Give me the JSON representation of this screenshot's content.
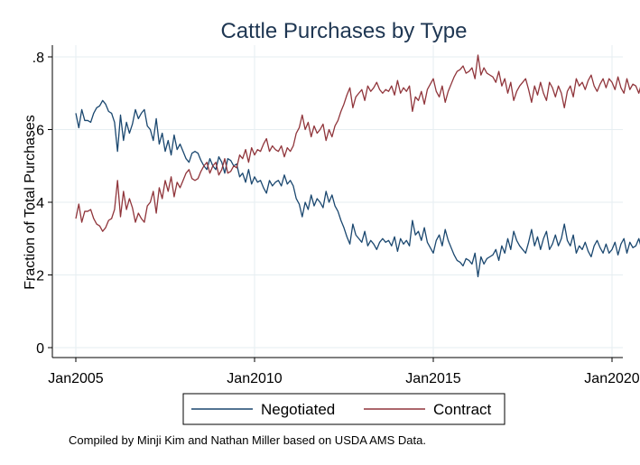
{
  "chart_data": {
    "type": "line",
    "title": "Cattle Purchases by Type",
    "ylabel": "Fraction of Total Purchases",
    "xlabel": "",
    "x_start": "2005-01",
    "x_end": "2019-12",
    "xlim": [
      "2005-01",
      "2020-01"
    ],
    "ylim": [
      0,
      0.8
    ],
    "x_ticks": [
      {
        "date": "2005-01",
        "label": "Jan2005"
      },
      {
        "date": "2010-01",
        "label": "Jan2010"
      },
      {
        "date": "2015-01",
        "label": "Jan2015"
      },
      {
        "date": "2020-01",
        "label": "Jan2020"
      }
    ],
    "y_ticks": [
      {
        "value": 0,
        "label": "0"
      },
      {
        "value": 0.2,
        "label": ".2"
      },
      {
        "value": 0.4,
        "label": ".4"
      },
      {
        "value": 0.6,
        "label": ".6"
      },
      {
        "value": 0.8,
        "label": ".8"
      }
    ],
    "grid": true,
    "legend_position": "bottom",
    "series": [
      {
        "name": "Negotiated",
        "color": "#1a476f",
        "values": [
          0.645,
          0.605,
          0.655,
          0.625,
          0.625,
          0.62,
          0.645,
          0.66,
          0.665,
          0.68,
          0.67,
          0.65,
          0.645,
          0.62,
          0.54,
          0.64,
          0.57,
          0.62,
          0.59,
          0.615,
          0.655,
          0.63,
          0.645,
          0.655,
          0.61,
          0.6,
          0.57,
          0.63,
          0.56,
          0.59,
          0.54,
          0.57,
          0.53,
          0.585,
          0.545,
          0.56,
          0.54,
          0.52,
          0.51,
          0.535,
          0.54,
          0.535,
          0.515,
          0.5,
          0.49,
          0.52,
          0.5,
          0.49,
          0.525,
          0.51,
          0.48,
          0.52,
          0.515,
          0.5,
          0.505,
          0.47,
          0.48,
          0.455,
          0.49,
          0.45,
          0.47,
          0.455,
          0.46,
          0.44,
          0.425,
          0.46,
          0.445,
          0.455,
          0.46,
          0.445,
          0.475,
          0.45,
          0.46,
          0.445,
          0.41,
          0.395,
          0.36,
          0.4,
          0.38,
          0.42,
          0.39,
          0.41,
          0.4,
          0.385,
          0.43,
          0.4,
          0.42,
          0.39,
          0.375,
          0.35,
          0.33,
          0.305,
          0.285,
          0.34,
          0.31,
          0.3,
          0.29,
          0.32,
          0.28,
          0.295,
          0.285,
          0.27,
          0.29,
          0.3,
          0.29,
          0.295,
          0.28,
          0.305,
          0.265,
          0.3,
          0.285,
          0.295,
          0.28,
          0.35,
          0.31,
          0.32,
          0.295,
          0.33,
          0.29,
          0.275,
          0.26,
          0.295,
          0.31,
          0.28,
          0.325,
          0.295,
          0.275,
          0.255,
          0.24,
          0.235,
          0.225,
          0.245,
          0.24,
          0.23,
          0.26,
          0.195,
          0.25,
          0.23,
          0.245,
          0.25,
          0.255,
          0.27,
          0.24,
          0.28,
          0.26,
          0.3,
          0.27,
          0.32,
          0.295,
          0.28,
          0.27,
          0.26,
          0.29,
          0.325,
          0.28,
          0.305,
          0.27,
          0.3,
          0.32,
          0.27,
          0.285,
          0.31,
          0.28,
          0.3,
          0.34,
          0.295,
          0.28,
          0.31,
          0.26,
          0.28,
          0.27,
          0.29,
          0.265,
          0.25,
          0.28,
          0.295,
          0.275,
          0.26,
          0.285,
          0.26,
          0.27,
          0.29,
          0.255,
          0.285,
          0.3,
          0.26,
          0.29,
          0.275,
          0.28,
          0.3,
          0.27,
          0.29,
          0.25,
          0.28,
          0.23,
          0.26,
          0.25,
          0.23,
          0.275,
          0.25,
          0.24,
          0.22,
          0.21,
          0.2,
          0.23,
          0.235
        ]
      },
      {
        "name": "Contract",
        "color": "#90353b",
        "values": [
          0.355,
          0.395,
          0.345,
          0.375,
          0.375,
          0.38,
          0.355,
          0.34,
          0.335,
          0.32,
          0.33,
          0.35,
          0.355,
          0.38,
          0.46,
          0.36,
          0.43,
          0.38,
          0.41,
          0.385,
          0.345,
          0.37,
          0.355,
          0.345,
          0.39,
          0.4,
          0.43,
          0.37,
          0.44,
          0.41,
          0.46,
          0.43,
          0.47,
          0.415,
          0.455,
          0.44,
          0.46,
          0.48,
          0.49,
          0.465,
          0.46,
          0.465,
          0.485,
          0.5,
          0.51,
          0.48,
          0.5,
          0.51,
          0.475,
          0.49,
          0.52,
          0.48,
          0.485,
          0.5,
          0.495,
          0.53,
          0.52,
          0.545,
          0.51,
          0.55,
          0.53,
          0.545,
          0.54,
          0.56,
          0.575,
          0.54,
          0.555,
          0.545,
          0.54,
          0.555,
          0.525,
          0.55,
          0.54,
          0.555,
          0.59,
          0.605,
          0.64,
          0.6,
          0.62,
          0.58,
          0.61,
          0.59,
          0.6,
          0.615,
          0.57,
          0.6,
          0.58,
          0.61,
          0.625,
          0.65,
          0.67,
          0.695,
          0.715,
          0.66,
          0.69,
          0.7,
          0.71,
          0.68,
          0.72,
          0.705,
          0.715,
          0.73,
          0.71,
          0.7,
          0.71,
          0.705,
          0.72,
          0.695,
          0.735,
          0.7,
          0.715,
          0.705,
          0.72,
          0.65,
          0.69,
          0.68,
          0.705,
          0.67,
          0.71,
          0.725,
          0.74,
          0.705,
          0.69,
          0.72,
          0.675,
          0.705,
          0.725,
          0.745,
          0.76,
          0.765,
          0.775,
          0.755,
          0.76,
          0.77,
          0.74,
          0.805,
          0.75,
          0.77,
          0.755,
          0.75,
          0.745,
          0.73,
          0.76,
          0.72,
          0.74,
          0.7,
          0.73,
          0.68,
          0.705,
          0.72,
          0.73,
          0.74,
          0.71,
          0.675,
          0.72,
          0.695,
          0.73,
          0.7,
          0.68,
          0.73,
          0.715,
          0.69,
          0.72,
          0.7,
          0.66,
          0.705,
          0.72,
          0.69,
          0.74,
          0.72,
          0.73,
          0.71,
          0.735,
          0.75,
          0.72,
          0.705,
          0.725,
          0.74,
          0.715,
          0.74,
          0.73,
          0.71,
          0.745,
          0.715,
          0.7,
          0.74,
          0.71,
          0.725,
          0.72,
          0.7,
          0.73,
          0.71,
          0.75,
          0.72,
          0.77,
          0.74,
          0.75,
          0.77,
          0.725,
          0.75,
          0.76,
          0.78,
          0.79,
          0.8,
          0.77,
          0.765
        ]
      }
    ]
  },
  "legend": {
    "items": [
      {
        "name": "Negotiated",
        "color": "#1a476f"
      },
      {
        "name": "Contract",
        "color": "#90353b"
      }
    ]
  },
  "note": "Compiled by Minji Kim and Nathan Miller based on USDA AMS Data."
}
